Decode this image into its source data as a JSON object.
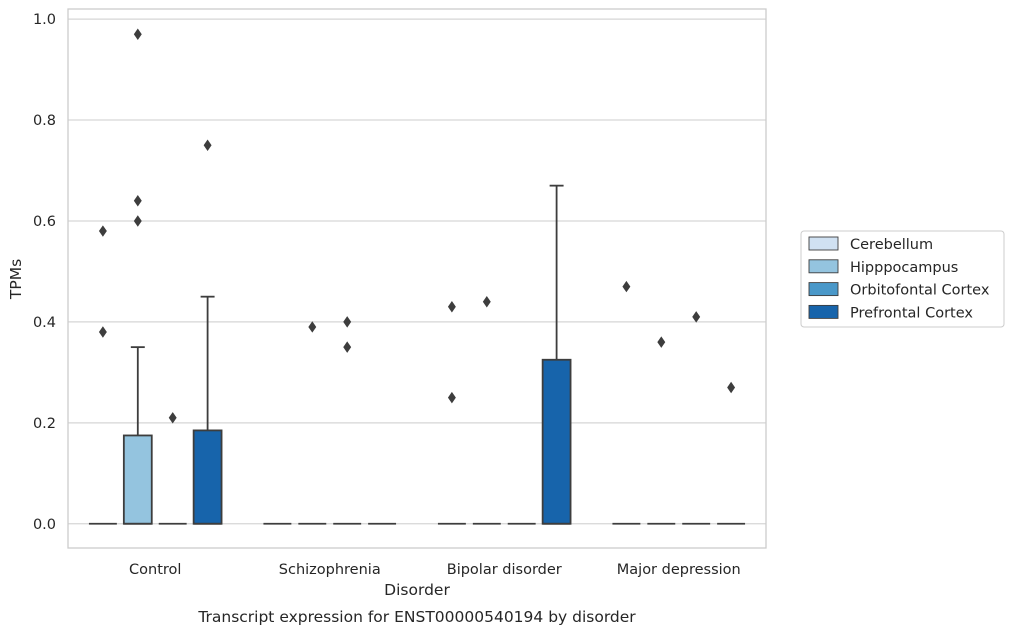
{
  "chart_data": {
    "type": "box",
    "title": "",
    "caption": "Transcript expression for ENST00000540194 by disorder",
    "xlabel": "Disorder",
    "ylabel": "TPMs",
    "ylim": [
      -0.048,
      1.02
    ],
    "yticks": [
      0.0,
      0.2,
      0.4,
      0.6,
      0.8,
      1.0
    ],
    "ytick_labels": [
      "0.0",
      "0.2",
      "0.4",
      "0.6",
      "0.8",
      "1.0"
    ],
    "grid": "horizontal",
    "legend_position": "right",
    "categories": [
      "Control",
      "Schizophrenia",
      "Bipolar disorder",
      "Major depression"
    ],
    "series": [
      {
        "name": "Cerebellum",
        "color": "#d0e1f2",
        "boxes": [
          {
            "q1": 0,
            "median": 0,
            "q3": 0,
            "whisker_low": 0,
            "whisker_high": 0,
            "outliers": [
              0.58,
              0.38
            ]
          },
          {
            "q1": 0,
            "median": 0,
            "q3": 0,
            "whisker_low": 0,
            "whisker_high": 0,
            "outliers": []
          },
          {
            "q1": 0,
            "median": 0,
            "q3": 0,
            "whisker_low": 0,
            "whisker_high": 0,
            "outliers": [
              0.43,
              0.25
            ]
          },
          {
            "q1": 0,
            "median": 0,
            "q3": 0,
            "whisker_low": 0,
            "whisker_high": 0,
            "outliers": [
              0.47
            ]
          }
        ]
      },
      {
        "name": "Hipppocampus",
        "color": "#94c4df",
        "boxes": [
          {
            "q1": 0,
            "median": 0,
            "q3": 0.175,
            "whisker_low": 0,
            "whisker_high": 0.35,
            "outliers": [
              0.97,
              0.64,
              0.6
            ]
          },
          {
            "q1": 0,
            "median": 0,
            "q3": 0,
            "whisker_low": 0,
            "whisker_high": 0,
            "outliers": [
              0.39
            ]
          },
          {
            "q1": 0,
            "median": 0,
            "q3": 0,
            "whisker_low": 0,
            "whisker_high": 0,
            "outliers": [
              0.44
            ]
          },
          {
            "q1": 0,
            "median": 0,
            "q3": 0,
            "whisker_low": 0,
            "whisker_high": 0,
            "outliers": [
              0.36
            ]
          }
        ]
      },
      {
        "name": "Orbitofontal Cortex",
        "color": "#4a98c9",
        "boxes": [
          {
            "q1": 0,
            "median": 0,
            "q3": 0,
            "whisker_low": 0,
            "whisker_high": 0,
            "outliers": [
              0.21
            ]
          },
          {
            "q1": 0,
            "median": 0,
            "q3": 0,
            "whisker_low": 0,
            "whisker_high": 0,
            "outliers": [
              0.4,
              0.35
            ]
          },
          {
            "q1": 0,
            "median": 0,
            "q3": 0,
            "whisker_low": 0,
            "whisker_high": 0,
            "outliers": []
          },
          {
            "q1": 0,
            "median": 0,
            "q3": 0,
            "whisker_low": 0,
            "whisker_high": 0,
            "outliers": [
              0.41
            ]
          }
        ]
      },
      {
        "name": "Prefrontal Cortex",
        "color": "#1764ab",
        "boxes": [
          {
            "q1": 0,
            "median": 0,
            "q3": 0.185,
            "whisker_low": 0,
            "whisker_high": 0.45,
            "outliers": [
              0.75
            ]
          },
          {
            "q1": 0,
            "median": 0,
            "q3": 0,
            "whisker_low": 0,
            "whisker_high": 0,
            "outliers": []
          },
          {
            "q1": 0,
            "median": 0,
            "q3": 0.325,
            "whisker_low": 0,
            "whisker_high": 0.67,
            "outliers": []
          },
          {
            "q1": 0,
            "median": 0,
            "q3": 0,
            "whisker_low": 0,
            "whisker_high": 0,
            "outliers": [
              0.27
            ]
          }
        ]
      }
    ]
  }
}
